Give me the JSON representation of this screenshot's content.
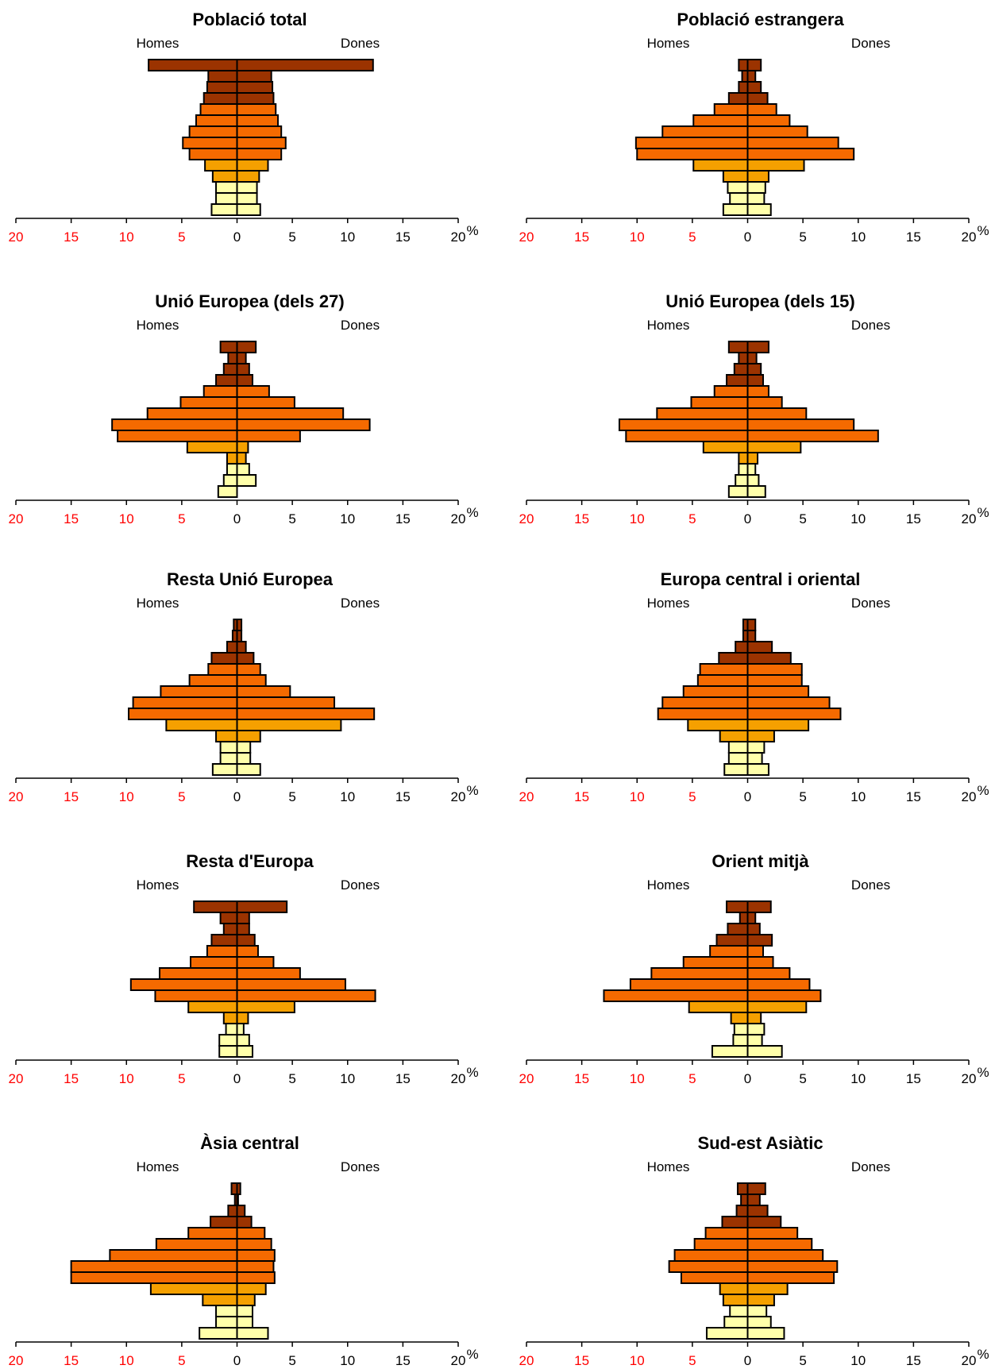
{
  "labels": {
    "men": "Homes",
    "women": "Dones",
    "unit": "%"
  },
  "colors": {
    "band_0_14": "#ffffaa",
    "band_15_24": "#f5a000",
    "band_25_44": "#f56a00",
    "band_45_plus": "#9b3300",
    "outline": "#000000",
    "left_tick": "#ff0000",
    "right_tick": "#000000"
  },
  "chart_data": [
    {
      "type": "bar",
      "title": "Població total",
      "xlim": [
        -20,
        20
      ],
      "ticks": [
        "20",
        "15",
        "10",
        "5",
        "0",
        "5",
        "10",
        "15",
        "20"
      ],
      "men": [
        8.0,
        2.6,
        2.7,
        3.0,
        3.3,
        3.7,
        4.3,
        4.9,
        4.3,
        2.9,
        2.2,
        1.9,
        1.9,
        2.3
      ],
      "women": [
        12.3,
        3.1,
        3.2,
        3.3,
        3.5,
        3.7,
        4.0,
        4.4,
        4.0,
        2.8,
        2.0,
        1.8,
        1.8,
        2.1
      ]
    },
    {
      "type": "bar",
      "title": "Població estrangera",
      "xlim": [
        -20,
        20
      ],
      "ticks": [
        "20",
        "15",
        "10",
        "5",
        "0",
        "5",
        "10",
        "15",
        "20"
      ],
      "men": [
        0.8,
        0.5,
        0.8,
        1.7,
        3.0,
        4.9,
        7.7,
        10.1,
        10.0,
        4.9,
        2.2,
        1.8,
        1.6,
        2.2
      ],
      "women": [
        1.2,
        0.7,
        1.2,
        1.8,
        2.6,
        3.8,
        5.4,
        8.2,
        9.6,
        5.1,
        1.9,
        1.6,
        1.5,
        2.1
      ]
    },
    {
      "type": "bar",
      "title": "Unió Europea (dels 27)",
      "xlim": [
        -20,
        20
      ],
      "ticks": [
        "20",
        "15",
        "10",
        "5",
        "0",
        "5",
        "10",
        "15",
        "20"
      ],
      "men": [
        1.5,
        0.8,
        1.2,
        1.9,
        3.0,
        5.1,
        8.1,
        11.3,
        10.8,
        4.5,
        0.9,
        0.9,
        1.2,
        1.7
      ],
      "women": [
        1.7,
        0.8,
        1.1,
        1.4,
        2.9,
        5.2,
        9.6,
        12.0,
        5.7,
        1.0,
        0.8,
        1.1,
        1.7,
        0.0
      ]
    },
    {
      "type": "bar",
      "title": "Unió Europea (dels 15)",
      "xlim": [
        -20,
        20
      ],
      "ticks": [
        "20",
        "15",
        "10",
        "5",
        "0",
        "5",
        "10",
        "15",
        "20"
      ],
      "men": [
        1.7,
        0.8,
        1.2,
        1.9,
        3.0,
        5.1,
        8.2,
        11.6,
        11.0,
        4.0,
        0.8,
        0.8,
        1.1,
        1.7
      ],
      "women": [
        1.9,
        0.8,
        1.2,
        1.4,
        1.9,
        3.1,
        5.3,
        9.6,
        11.8,
        4.8,
        0.9,
        0.7,
        1.0,
        1.6
      ]
    },
    {
      "type": "bar",
      "title": "Resta Unió Europea",
      "xlim": [
        -20,
        20
      ],
      "ticks": [
        "20",
        "15",
        "10",
        "5",
        "0",
        "5",
        "10",
        "15",
        "20"
      ],
      "men": [
        0.3,
        0.4,
        0.9,
        2.3,
        2.6,
        4.3,
        6.9,
        9.4,
        9.8,
        6.4,
        1.9,
        1.5,
        1.5,
        2.2
      ],
      "women": [
        0.4,
        0.4,
        0.8,
        1.5,
        2.1,
        2.6,
        4.8,
        8.8,
        12.4,
        9.4,
        2.1,
        1.2,
        1.2,
        2.1
      ]
    },
    {
      "type": "bar",
      "title": "Europa central i oriental",
      "xlim": [
        -20,
        20
      ],
      "ticks": [
        "20",
        "15",
        "10",
        "5",
        "0",
        "5",
        "10",
        "15",
        "20"
      ],
      "men": [
        0.4,
        0.4,
        1.1,
        2.6,
        4.3,
        4.5,
        5.8,
        7.7,
        8.1,
        5.4,
        2.5,
        1.7,
        1.7,
        2.1
      ],
      "women": [
        0.7,
        0.7,
        2.2,
        3.9,
        4.9,
        4.9,
        5.5,
        7.4,
        8.4,
        5.5,
        2.4,
        1.5,
        1.3,
        1.9
      ]
    },
    {
      "type": "bar",
      "title": "Resta d'Europa",
      "xlim": [
        -20,
        20
      ],
      "ticks": [
        "20",
        "15",
        "10",
        "5",
        "0",
        "5",
        "10",
        "15",
        "20"
      ],
      "men": [
        3.9,
        1.5,
        1.2,
        2.3,
        2.7,
        4.2,
        7.0,
        9.6,
        7.4,
        4.4,
        1.2,
        1.0,
        1.6,
        1.6
      ],
      "women": [
        4.5,
        1.1,
        1.1,
        1.6,
        1.9,
        3.3,
        5.7,
        9.8,
        12.5,
        5.2,
        1.0,
        0.6,
        1.1,
        1.4
      ]
    },
    {
      "type": "bar",
      "title": "Orient mitjà",
      "xlim": [
        -20,
        20
      ],
      "ticks": [
        "20",
        "15",
        "10",
        "5",
        "0",
        "5",
        "10",
        "15",
        "20"
      ],
      "men": [
        1.9,
        0.7,
        1.8,
        2.8,
        3.4,
        5.8,
        8.7,
        10.6,
        13.0,
        5.3,
        1.5,
        1.2,
        1.3,
        3.2
      ],
      "women": [
        2.1,
        0.7,
        1.1,
        2.2,
        1.4,
        2.3,
        3.8,
        5.6,
        6.6,
        5.3,
        1.2,
        1.5,
        1.3,
        3.1
      ]
    },
    {
      "type": "bar",
      "title": "Àsia central",
      "xlim": [
        -20,
        20
      ],
      "ticks": [
        "20",
        "15",
        "10",
        "5",
        "0",
        "5",
        "10",
        "15",
        "20"
      ],
      "men": [
        0.5,
        0.2,
        0.8,
        2.4,
        4.4,
        7.3,
        11.5,
        15.0,
        15.0,
        7.8,
        3.1,
        1.9,
        1.9,
        3.4
      ],
      "women": [
        0.3,
        0.1,
        0.7,
        1.3,
        2.5,
        3.1,
        3.4,
        3.3,
        3.4,
        2.6,
        1.6,
        1.4,
        1.4,
        2.8
      ]
    },
    {
      "type": "bar",
      "title": "Sud-est Asiàtic",
      "xlim": [
        -20,
        20
      ],
      "ticks": [
        "20",
        "15",
        "10",
        "5",
        "0",
        "5",
        "10",
        "15",
        "20"
      ],
      "men": [
        0.9,
        0.6,
        1.0,
        2.3,
        3.8,
        4.8,
        6.6,
        7.1,
        6.0,
        2.5,
        2.2,
        1.6,
        2.1,
        3.7
      ],
      "women": [
        1.6,
        1.1,
        1.8,
        3.0,
        4.5,
        5.8,
        6.8,
        8.1,
        7.8,
        3.6,
        2.4,
        1.7,
        2.1,
        3.3
      ]
    }
  ]
}
